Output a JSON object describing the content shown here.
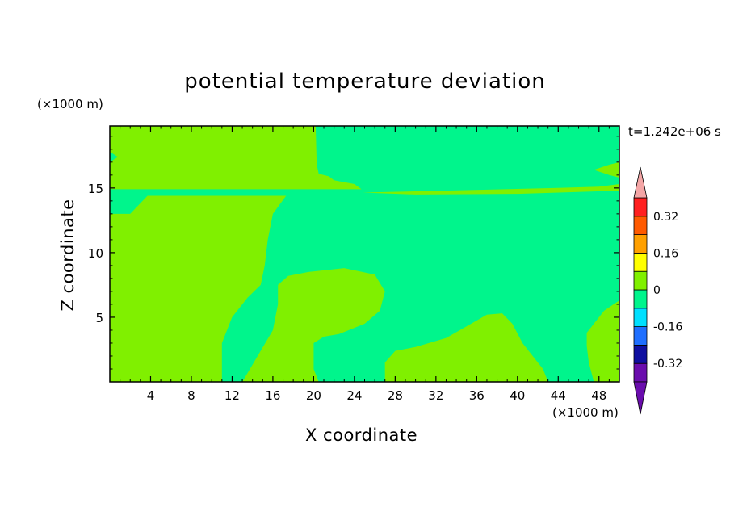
{
  "chart_data": {
    "type": "heatmap",
    "title": "potential temperature deviation",
    "xlabel": "X coordinate",
    "ylabel": "Z coordinate",
    "x_unit": "(×1000 m)",
    "z_unit": "(×1000 m)",
    "time_label": "t=1.242e+06 s",
    "xlim": [
      0,
      50
    ],
    "ylim": [
      0,
      19.8
    ],
    "xticks": [
      4,
      8,
      12,
      16,
      20,
      24,
      28,
      32,
      36,
      40,
      44,
      48
    ],
    "yticks": [
      5,
      10,
      15
    ],
    "colorbar": {
      "levels": [
        -0.4,
        -0.32,
        -0.24,
        -0.16,
        -0.08,
        0,
        0.08,
        0.16,
        0.24,
        0.32,
        0.4
      ],
      "tick_labels": [
        "-0.32",
        "-0.16",
        "0",
        "0.16",
        "0.32"
      ],
      "tick_values": [
        -0.32,
        -0.16,
        0,
        0.16,
        0.32
      ],
      "colors": [
        "#6a0dad",
        "#0f0fa0",
        "#1f6fff",
        "#00e0ff",
        "#00f58c",
        "#80f000",
        "#ffff00",
        "#ffa000",
        "#ff5a00",
        "#ff2020"
      ],
      "under_color": "#6a0dad",
      "over_color": "#f4a6a6"
    },
    "field_colors": {
      "negative": "#00f58c",
      "positive": "#80f000"
    },
    "regions": [
      {
        "value": "0 to 0.08",
        "polygon": [
          [
            0,
            13
          ],
          [
            2,
            13
          ],
          [
            3.7,
            14.4
          ],
          [
            17.3,
            14.4
          ],
          [
            16,
            13
          ],
          [
            15.5,
            11
          ],
          [
            15.2,
            9
          ],
          [
            14.8,
            7.5
          ],
          [
            13.5,
            6.5
          ],
          [
            12,
            5
          ],
          [
            11,
            3
          ],
          [
            11,
            1
          ],
          [
            11,
            0
          ],
          [
            0,
            0
          ]
        ]
      },
      {
        "value": "0 to 0.08",
        "polygon": [
          [
            13,
            0
          ],
          [
            14.5,
            2
          ],
          [
            16,
            4
          ],
          [
            16.5,
            6
          ],
          [
            16.5,
            7.5
          ],
          [
            17.5,
            8.2
          ],
          [
            19.5,
            8.5
          ],
          [
            23,
            8.8
          ],
          [
            26,
            8.3
          ],
          [
            27,
            7
          ],
          [
            26.5,
            5.5
          ],
          [
            25,
            4.5
          ],
          [
            22.5,
            3.7
          ],
          [
            21,
            3.5
          ],
          [
            20,
            3
          ],
          [
            20,
            1
          ],
          [
            20.5,
            0
          ]
        ]
      },
      {
        "value": "0 to 0.08",
        "polygon": [
          [
            27,
            0
          ],
          [
            27,
            1.5
          ],
          [
            28,
            2.4
          ],
          [
            30,
            2.7
          ],
          [
            33,
            3.4
          ],
          [
            35,
            4.3
          ],
          [
            37,
            5.2
          ],
          [
            38.5,
            5.3
          ],
          [
            39.5,
            4.5
          ],
          [
            40.5,
            3
          ],
          [
            41.5,
            2
          ],
          [
            42.5,
            1
          ],
          [
            43,
            0
          ]
        ]
      },
      {
        "value": "0 to 0.08",
        "polygon": [
          [
            47.5,
            0
          ],
          [
            47,
            1.5
          ],
          [
            46.8,
            2.8
          ],
          [
            46.8,
            3.8
          ],
          [
            47.5,
            4.5
          ],
          [
            48.5,
            5.5
          ],
          [
            50,
            6.3
          ],
          [
            50,
            0
          ]
        ]
      },
      {
        "value": "0 to 0.08",
        "polygon": [
          [
            0,
            14.9
          ],
          [
            24.7,
            14.9
          ],
          [
            24,
            15.3
          ],
          [
            22,
            15.6
          ],
          [
            21.5,
            15.9
          ],
          [
            20.5,
            16.1
          ],
          [
            20.3,
            16.8
          ],
          [
            20.2,
            19.8
          ],
          [
            0,
            19.8
          ],
          [
            0,
            17.8
          ],
          [
            0.8,
            17.4
          ],
          [
            0,
            17
          ]
        ]
      },
      {
        "value": "0 to 0.08",
        "polygon": [
          [
            24.8,
            14.65
          ],
          [
            44,
            15
          ],
          [
            48,
            15.1
          ],
          [
            50,
            15.3
          ],
          [
            50,
            14.8
          ],
          [
            40,
            14.55
          ],
          [
            30,
            14.5
          ]
        ]
      },
      {
        "value": "0 to 0.08",
        "polygon": [
          [
            50,
            15.8
          ],
          [
            49,
            16
          ],
          [
            47.5,
            16.4
          ],
          [
            49,
            16.8
          ],
          [
            50,
            17
          ]
        ]
      }
    ]
  }
}
